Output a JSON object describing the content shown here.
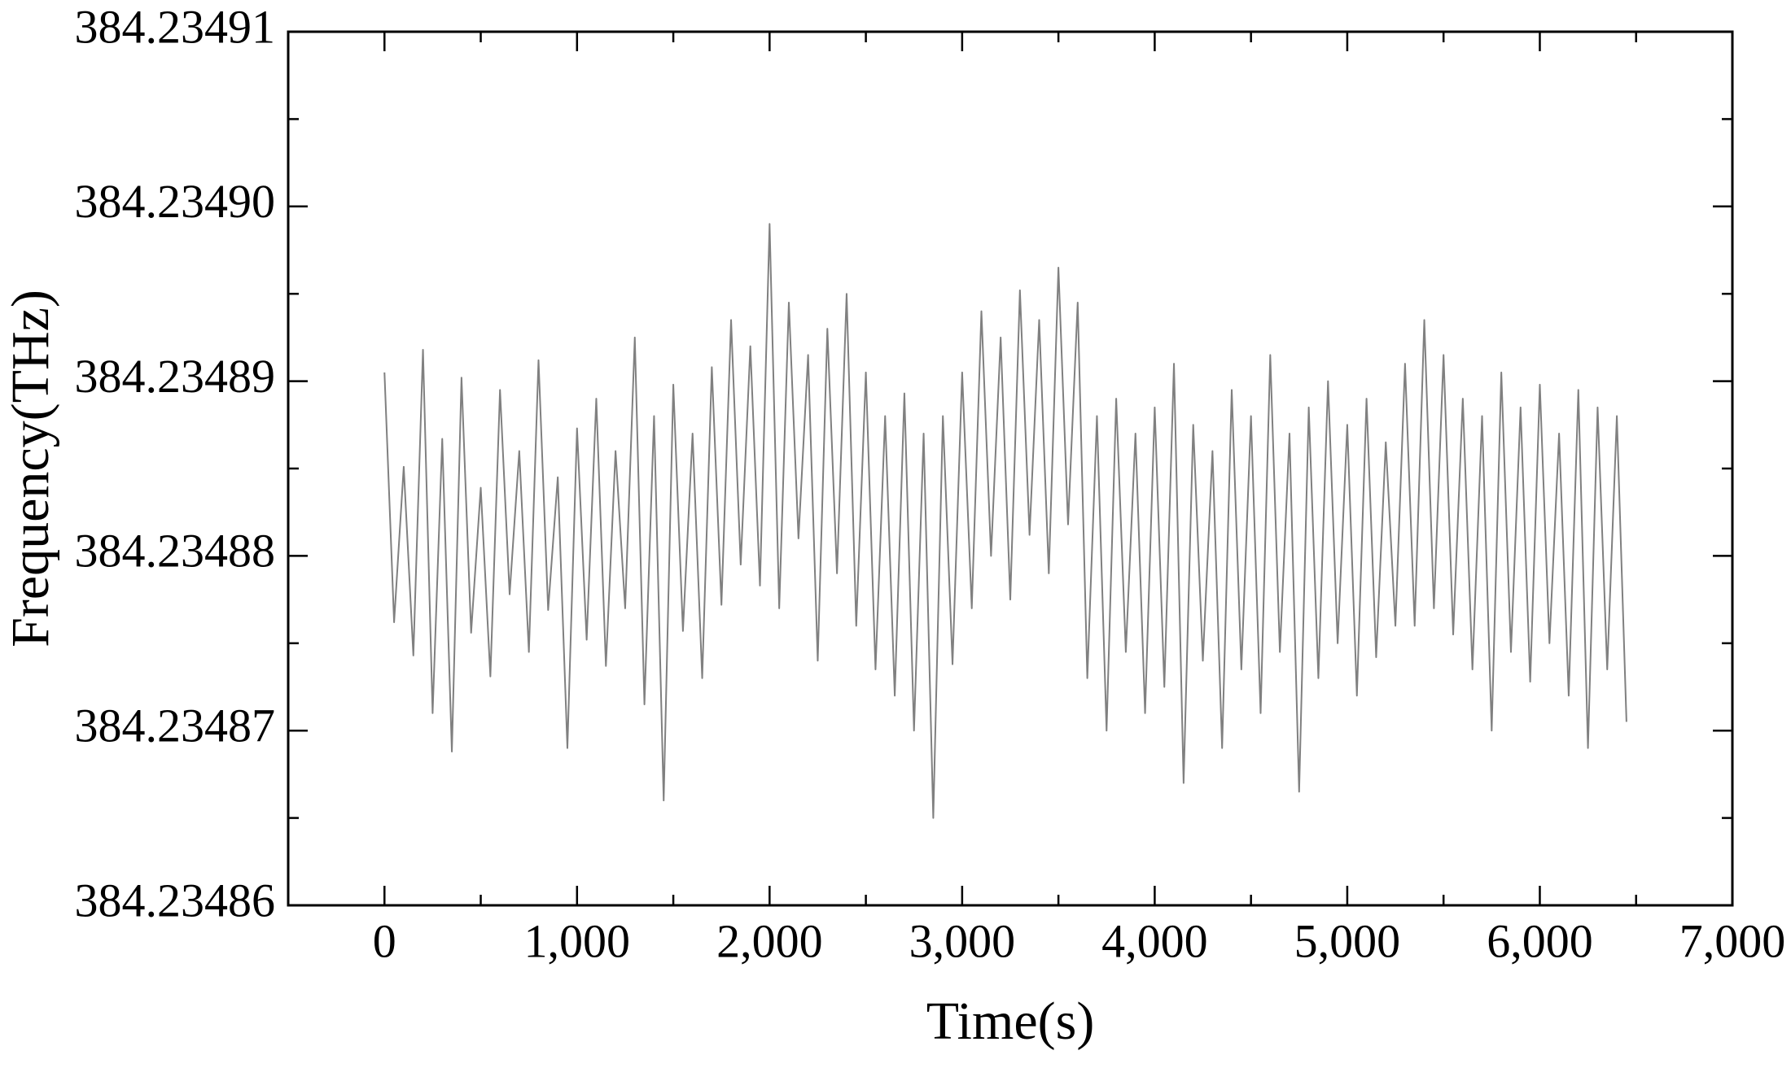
{
  "chart_data": {
    "type": "line",
    "xlabel": "Time(s)",
    "ylabel": "Frequency(THz)",
    "color": "#808080",
    "xlim": [
      -500,
      7000
    ],
    "xticks": [
      0,
      {
        "value": 1000,
        "label": "1,000"
      },
      {
        "value": 2000,
        "label": "2,000"
      },
      {
        "value": 3000,
        "label": "3,000"
      },
      {
        "value": 4000,
        "label": "4,000"
      },
      {
        "value": 5000,
        "label": "5,000"
      },
      {
        "value": 6000,
        "label": "6,000"
      },
      {
        "value": 7000,
        "label": "7,000"
      }
    ],
    "xminorticks": [
      -500,
      500,
      1500,
      2500,
      3500,
      4500,
      5500,
      6500
    ],
    "ylim": [
      384.23486,
      384.23491
    ],
    "yticks": [
      384.23486,
      384.23487,
      384.23488,
      384.23489,
      {
        "value": 384.2349,
        "label": "384.23490"
      },
      384.23491
    ],
    "yminorticks": [
      384.234865,
      384.234875,
      384.234885,
      384.234895,
      384.234905
    ],
    "x": [
      0,
      50,
      100,
      150,
      200,
      250,
      300,
      350,
      400,
      450,
      500,
      550,
      600,
      650,
      700,
      750,
      800,
      850,
      900,
      950,
      1000,
      1050,
      1100,
      1150,
      1200,
      1250,
      1300,
      1350,
      1400,
      1450,
      1500,
      1550,
      1600,
      1650,
      1700,
      1750,
      1800,
      1850,
      1900,
      1950,
      2000,
      2050,
      2100,
      2150,
      2200,
      2250,
      2300,
      2350,
      2400,
      2450,
      2500,
      2550,
      2600,
      2650,
      2700,
      2750,
      2800,
      2850,
      2900,
      2950,
      3000,
      3050,
      3100,
      3150,
      3200,
      3250,
      3300,
      3350,
      3400,
      3450,
      3500,
      3550,
      3600,
      3650,
      3700,
      3750,
      3800,
      3850,
      3900,
      3950,
      4000,
      4050,
      4100,
      4150,
      4200,
      4250,
      4300,
      4350,
      4400,
      4450,
      4500,
      4550,
      4600,
      4650,
      4700,
      4750,
      4800,
      4850,
      4900,
      4950,
      5000,
      5050,
      5100,
      5150,
      5200,
      5250,
      5300,
      5350,
      5400,
      5450,
      5500,
      5550,
      5600,
      5650,
      5700,
      5750,
      5800,
      5850,
      5900,
      5950,
      6000,
      6050,
      6100,
      6150,
      6200,
      6250,
      6300,
      6350,
      6400,
      6450
    ],
    "values": [
      384.2348905,
      384.2348762,
      384.2348851,
      384.2348743,
      384.2348918,
      384.234871,
      384.2348867,
      384.2348688,
      384.2348902,
      384.2348756,
      384.2348839,
      384.2348731,
      384.2348895,
      384.2348778,
      384.234886,
      384.2348745,
      384.2348912,
      384.2348769,
      384.2348845,
      384.234869,
      384.2348873,
      384.2348752,
      384.234889,
      384.2348737,
      384.234886,
      384.234877,
      384.2348925,
      384.2348715,
      384.234888,
      384.234866,
      384.2348898,
      384.2348757,
      384.234887,
      384.234873,
      384.2348908,
      384.2348772,
      384.2348935,
      384.2348795,
      384.234892,
      384.2348783,
      384.234899,
      384.234877,
      384.2348945,
      384.234881,
      384.2348915,
      384.234874,
      384.234893,
      384.234879,
      384.234895,
      384.234876,
      384.2348905,
      384.2348735,
      384.234888,
      384.234872,
      384.2348893,
      384.23487,
      384.234887,
      384.234865,
      384.234888,
      384.2348738,
      384.2348905,
      384.234877,
      384.234894,
      384.23488,
      384.2348925,
      384.2348775,
      384.2348952,
      384.2348812,
      384.2348935,
      384.234879,
      384.2348965,
      384.2348818,
      384.2348945,
      384.234873,
      384.234888,
      384.23487,
      384.234889,
      384.2348745,
      384.234887,
      384.234871,
      384.2348885,
      384.2348725,
      384.234891,
      384.234867,
      384.2348875,
      384.234874,
      384.234886,
      384.234869,
      384.2348895,
      384.2348735,
      384.234888,
      384.234871,
      384.2348915,
      384.2348745,
      384.234887,
      384.2348665,
      384.2348885,
      384.234873,
      384.23489,
      384.234875,
      384.2348875,
      384.234872,
      384.234889,
      384.2348742,
      384.2348865,
      384.234876,
      384.234891,
      384.234876,
      384.2348935,
      384.234877,
      384.2348915,
      384.2348755,
      384.234889,
      384.2348735,
      384.234888,
      384.23487,
      384.2348905,
      384.2348745,
      384.2348885,
      384.2348728,
      384.2348898,
      384.234875,
      384.234887,
      384.234872,
      384.2348895,
      384.234869,
      384.2348885,
      384.2348735,
      384.234888,
      384.2348705
    ]
  }
}
